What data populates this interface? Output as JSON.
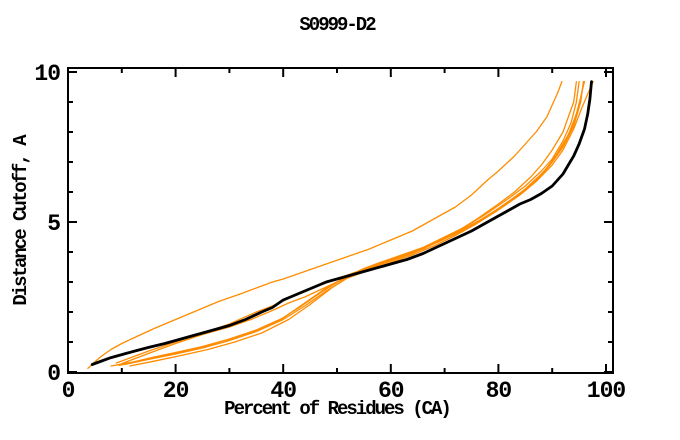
{
  "title": "S0999-D2",
  "chart_data": {
    "type": "line",
    "title": "S0999-D2",
    "xlabel": "Percent of Residues (CA)",
    "ylabel": "Distance Cutoff, A",
    "xlim": [
      0,
      100
    ],
    "ylim": [
      0,
      10
    ],
    "xticks_major": [
      0,
      20,
      40,
      60,
      80,
      100
    ],
    "xticks_minor": [
      10,
      30,
      50,
      70,
      90
    ],
    "yticks_major": [
      0,
      5,
      10
    ],
    "yticks_minor": [
      1,
      2,
      3,
      4,
      6,
      7,
      8,
      9
    ],
    "grid": false,
    "legend": "none",
    "colors": {
      "reference": "#000000",
      "models": "#ff8c00",
      "background": "#ffffff"
    },
    "series": [
      {
        "name": "reference-black",
        "color": "#000000",
        "width": 2.8,
        "points": [
          [
            4.5,
            0.25
          ],
          [
            6,
            0.35
          ],
          [
            8,
            0.48
          ],
          [
            10,
            0.58
          ],
          [
            12,
            0.68
          ],
          [
            15,
            0.82
          ],
          [
            18,
            0.95
          ],
          [
            20,
            1.05
          ],
          [
            23,
            1.2
          ],
          [
            26,
            1.35
          ],
          [
            30,
            1.55
          ],
          [
            33,
            1.75
          ],
          [
            36,
            2.0
          ],
          [
            38,
            2.15
          ],
          [
            40,
            2.4
          ],
          [
            42,
            2.55
          ],
          [
            44,
            2.7
          ],
          [
            46,
            2.85
          ],
          [
            48,
            3.0
          ],
          [
            50,
            3.1
          ],
          [
            53,
            3.25
          ],
          [
            56,
            3.4
          ],
          [
            60,
            3.6
          ],
          [
            63,
            3.75
          ],
          [
            66,
            3.95
          ],
          [
            69,
            4.2
          ],
          [
            72,
            4.45
          ],
          [
            75,
            4.7
          ],
          [
            78,
            5.0
          ],
          [
            80,
            5.2
          ],
          [
            82,
            5.4
          ],
          [
            84,
            5.6
          ],
          [
            86,
            5.75
          ],
          [
            88,
            5.95
          ],
          [
            90,
            6.2
          ],
          [
            91,
            6.4
          ],
          [
            92,
            6.6
          ],
          [
            93,
            6.9
          ],
          [
            94,
            7.2
          ],
          [
            95,
            7.6
          ],
          [
            96,
            8.1
          ],
          [
            96.6,
            8.6
          ],
          [
            97,
            9.1
          ],
          [
            97.3,
            9.68
          ]
        ]
      },
      {
        "name": "model-high",
        "color": "#ff8c00",
        "width": 1.3,
        "points": [
          [
            3.7,
            0.12
          ],
          [
            6,
            0.5
          ],
          [
            8,
            0.75
          ],
          [
            10,
            0.95
          ],
          [
            13,
            1.2
          ],
          [
            16,
            1.45
          ],
          [
            20,
            1.75
          ],
          [
            24,
            2.05
          ],
          [
            28,
            2.35
          ],
          [
            32,
            2.6
          ],
          [
            35,
            2.8
          ],
          [
            38,
            3.0
          ],
          [
            40,
            3.1
          ],
          [
            44,
            3.35
          ],
          [
            48,
            3.6
          ],
          [
            52,
            3.85
          ],
          [
            56,
            4.1
          ],
          [
            60,
            4.4
          ],
          [
            64,
            4.7
          ],
          [
            68,
            5.1
          ],
          [
            72,
            5.5
          ],
          [
            75,
            5.9
          ],
          [
            78,
            6.4
          ],
          [
            80,
            6.7
          ],
          [
            83,
            7.2
          ],
          [
            85,
            7.6
          ],
          [
            87,
            8.0
          ],
          [
            89,
            8.5
          ],
          [
            90,
            8.9
          ],
          [
            91,
            9.3
          ],
          [
            91.8,
            9.68
          ]
        ]
      },
      {
        "name": "model-2",
        "color": "#ff8c00",
        "width": 1.3,
        "points": [
          [
            9,
            0.3
          ],
          [
            12,
            0.5
          ],
          [
            15,
            0.7
          ],
          [
            20,
            1.0
          ],
          [
            25,
            1.3
          ],
          [
            30,
            1.6
          ],
          [
            35,
            2.0
          ],
          [
            38,
            2.2
          ],
          [
            41,
            2.45
          ],
          [
            43,
            2.6
          ],
          [
            45,
            2.75
          ],
          [
            47,
            2.9
          ],
          [
            50,
            3.1
          ],
          [
            53,
            3.3
          ],
          [
            56,
            3.45
          ],
          [
            60,
            3.7
          ],
          [
            64,
            3.95
          ],
          [
            68,
            4.3
          ],
          [
            72,
            4.65
          ],
          [
            76,
            5.1
          ],
          [
            80,
            5.6
          ],
          [
            83,
            6.0
          ],
          [
            86,
            6.5
          ],
          [
            88,
            6.9
          ],
          [
            90,
            7.4
          ],
          [
            92,
            8.0
          ],
          [
            93,
            8.5
          ],
          [
            94,
            9.0
          ],
          [
            94.5,
            9.68
          ]
        ]
      },
      {
        "name": "model-3",
        "color": "#ff8c00",
        "width": 1.3,
        "points": [
          [
            8,
            0.2
          ],
          [
            12,
            0.33
          ],
          [
            16,
            0.5
          ],
          [
            20,
            0.65
          ],
          [
            25,
            0.85
          ],
          [
            30,
            1.1
          ],
          [
            35,
            1.4
          ],
          [
            40,
            1.8
          ],
          [
            44,
            2.3
          ],
          [
            48,
            2.8
          ],
          [
            52,
            3.2
          ],
          [
            55,
            3.45
          ],
          [
            58,
            3.65
          ],
          [
            62,
            3.9
          ],
          [
            66,
            4.15
          ],
          [
            70,
            4.5
          ],
          [
            74,
            4.85
          ],
          [
            78,
            5.3
          ],
          [
            82,
            5.8
          ],
          [
            85,
            6.2
          ],
          [
            88,
            6.7
          ],
          [
            90,
            7.1
          ],
          [
            92,
            7.7
          ],
          [
            93.5,
            8.3
          ],
          [
            94.5,
            9.0
          ],
          [
            95,
            9.68
          ]
        ]
      },
      {
        "name": "model-4",
        "color": "#ff8c00",
        "width": 1.3,
        "points": [
          [
            9.5,
            0.22
          ],
          [
            14,
            0.4
          ],
          [
            19,
            0.58
          ],
          [
            24,
            0.78
          ],
          [
            29,
            1.0
          ],
          [
            34,
            1.3
          ],
          [
            39,
            1.7
          ],
          [
            43,
            2.15
          ],
          [
            47,
            2.65
          ],
          [
            51,
            3.1
          ],
          [
            54,
            3.35
          ],
          [
            58,
            3.6
          ],
          [
            62,
            3.85
          ],
          [
            66,
            4.1
          ],
          [
            70,
            4.45
          ],
          [
            74,
            4.8
          ],
          [
            78,
            5.2
          ],
          [
            82,
            5.7
          ],
          [
            85,
            6.1
          ],
          [
            88,
            6.6
          ],
          [
            90,
            7.0
          ],
          [
            92,
            7.5
          ],
          [
            94,
            8.2
          ],
          [
            95.3,
            9.0
          ],
          [
            95.8,
            9.68
          ]
        ]
      },
      {
        "name": "model-5",
        "color": "#ff8c00",
        "width": 1.3,
        "points": [
          [
            10.5,
            0.25
          ],
          [
            15,
            0.42
          ],
          [
            20,
            0.6
          ],
          [
            25,
            0.8
          ],
          [
            30,
            1.05
          ],
          [
            35,
            1.35
          ],
          [
            40,
            1.75
          ],
          [
            44,
            2.2
          ],
          [
            48,
            2.7
          ],
          [
            52,
            3.15
          ],
          [
            56,
            3.5
          ],
          [
            60,
            3.75
          ],
          [
            64,
            4.0
          ],
          [
            68,
            4.3
          ],
          [
            72,
            4.6
          ],
          [
            76,
            5.0
          ],
          [
            80,
            5.45
          ],
          [
            84,
            5.95
          ],
          [
            87,
            6.4
          ],
          [
            89,
            6.8
          ],
          [
            91,
            7.3
          ],
          [
            93,
            7.9
          ],
          [
            94.5,
            8.6
          ],
          [
            95.5,
            9.3
          ],
          [
            95.9,
            9.68
          ]
        ]
      },
      {
        "name": "model-6",
        "color": "#ff8c00",
        "width": 1.3,
        "points": [
          [
            11.5,
            0.2
          ],
          [
            16,
            0.36
          ],
          [
            21,
            0.55
          ],
          [
            26,
            0.75
          ],
          [
            31,
            1.0
          ],
          [
            36,
            1.3
          ],
          [
            41,
            1.75
          ],
          [
            45,
            2.25
          ],
          [
            49,
            2.8
          ],
          [
            53,
            3.25
          ],
          [
            57,
            3.55
          ],
          [
            61,
            3.8
          ],
          [
            65,
            4.05
          ],
          [
            69,
            4.35
          ],
          [
            73,
            4.7
          ],
          [
            77,
            5.1
          ],
          [
            81,
            5.55
          ],
          [
            85,
            6.05
          ],
          [
            88,
            6.55
          ],
          [
            90,
            7.0
          ],
          [
            92,
            7.55
          ],
          [
            93.8,
            8.2
          ],
          [
            95,
            8.9
          ],
          [
            95.6,
            9.4
          ],
          [
            96,
            9.68
          ]
        ]
      },
      {
        "name": "model-7",
        "color": "#ff8c00",
        "width": 1.3,
        "points": [
          [
            10,
            0.28
          ],
          [
            15,
            0.62
          ],
          [
            20,
            0.95
          ],
          [
            25,
            1.25
          ],
          [
            30,
            1.5
          ],
          [
            34,
            1.75
          ],
          [
            38,
            2.05
          ],
          [
            41,
            2.3
          ],
          [
            44,
            2.5
          ],
          [
            47,
            2.75
          ],
          [
            50,
            3.0
          ],
          [
            53,
            3.2
          ],
          [
            56,
            3.4
          ],
          [
            60,
            3.65
          ],
          [
            64,
            3.9
          ],
          [
            68,
            4.2
          ],
          [
            72,
            4.55
          ],
          [
            76,
            4.95
          ],
          [
            80,
            5.4
          ],
          [
            84,
            5.9
          ],
          [
            87,
            6.35
          ],
          [
            90,
            6.9
          ],
          [
            92,
            7.4
          ],
          [
            94,
            8.1
          ],
          [
            95.5,
            8.8
          ],
          [
            96.8,
            9.35
          ],
          [
            97.6,
            9.68
          ]
        ]
      }
    ]
  }
}
